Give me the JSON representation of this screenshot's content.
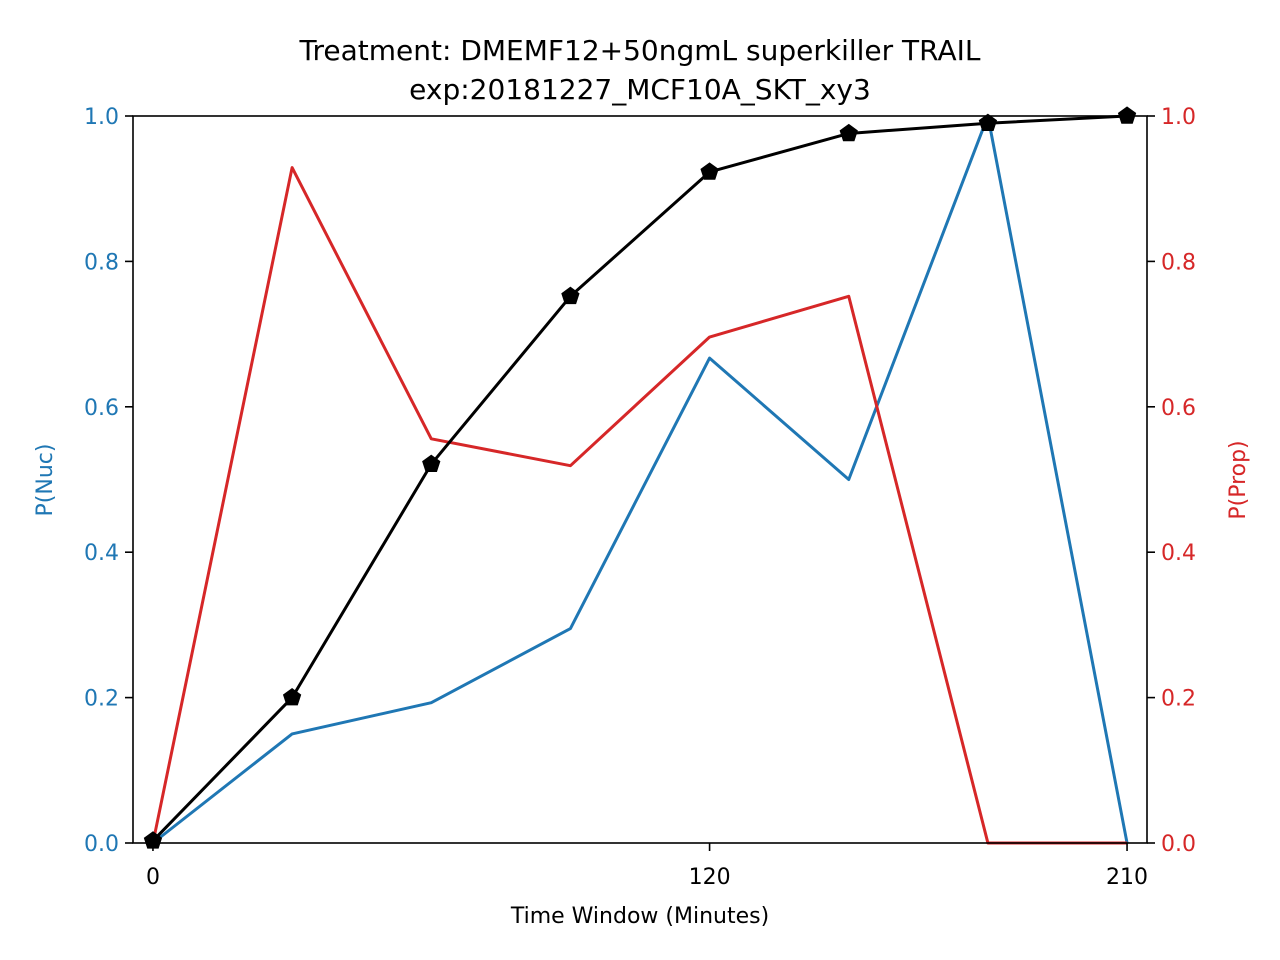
{
  "chart_data": {
    "type": "line",
    "title": "Treatment: DMEMF12+50ngmL superkiller TRAIL",
    "subtitle": "exp:20181227_MCF10A_SKT_xy3",
    "xlabel": "Time Window (Minutes)",
    "ylabel_left": "P(Nuc)",
    "ylabel_right": "P(Prop)",
    "xlim": [
      -4.3,
      214.3
    ],
    "ylim_left": [
      0,
      1
    ],
    "ylim_right": [
      0,
      1
    ],
    "x_ticks": [
      0,
      120,
      210
    ],
    "x_tick_labels": [
      "0",
      "120",
      "210"
    ],
    "y_ticks_left": [
      0,
      0.2,
      0.4,
      0.6,
      0.8,
      1.0
    ],
    "y_tick_labels_left": [
      "0.0",
      "0.2",
      "0.4",
      "0.6",
      "0.8",
      "1.0"
    ],
    "y_ticks_right": [
      0,
      0.2,
      0.4,
      0.6,
      0.8,
      1.0
    ],
    "y_tick_labels_right": [
      "0.0",
      "0.2",
      "0.4",
      "0.6",
      "0.8",
      "1.0"
    ],
    "grid": false,
    "left_axis_color": "#1f77b4",
    "right_axis_color": "#d62728",
    "x": [
      0,
      30,
      60,
      90,
      120,
      150,
      180,
      210
    ],
    "series": [
      {
        "axis": "left",
        "color": "#1f77b4",
        "marker": "none",
        "values": [
          0.0,
          0.15,
          0.193,
          0.295,
          0.667,
          0.5,
          1.0,
          0.0
        ]
      },
      {
        "axis": "right",
        "color": "#d62728",
        "marker": "none",
        "values": [
          0.0,
          0.929,
          0.556,
          0.519,
          0.696,
          0.752,
          0.0,
          0.0
        ]
      },
      {
        "axis": "left",
        "color": "#000000",
        "marker": "pentagon",
        "values": [
          0.003,
          0.2,
          0.521,
          0.752,
          0.923,
          0.976,
          0.99,
          1.0
        ]
      }
    ]
  }
}
